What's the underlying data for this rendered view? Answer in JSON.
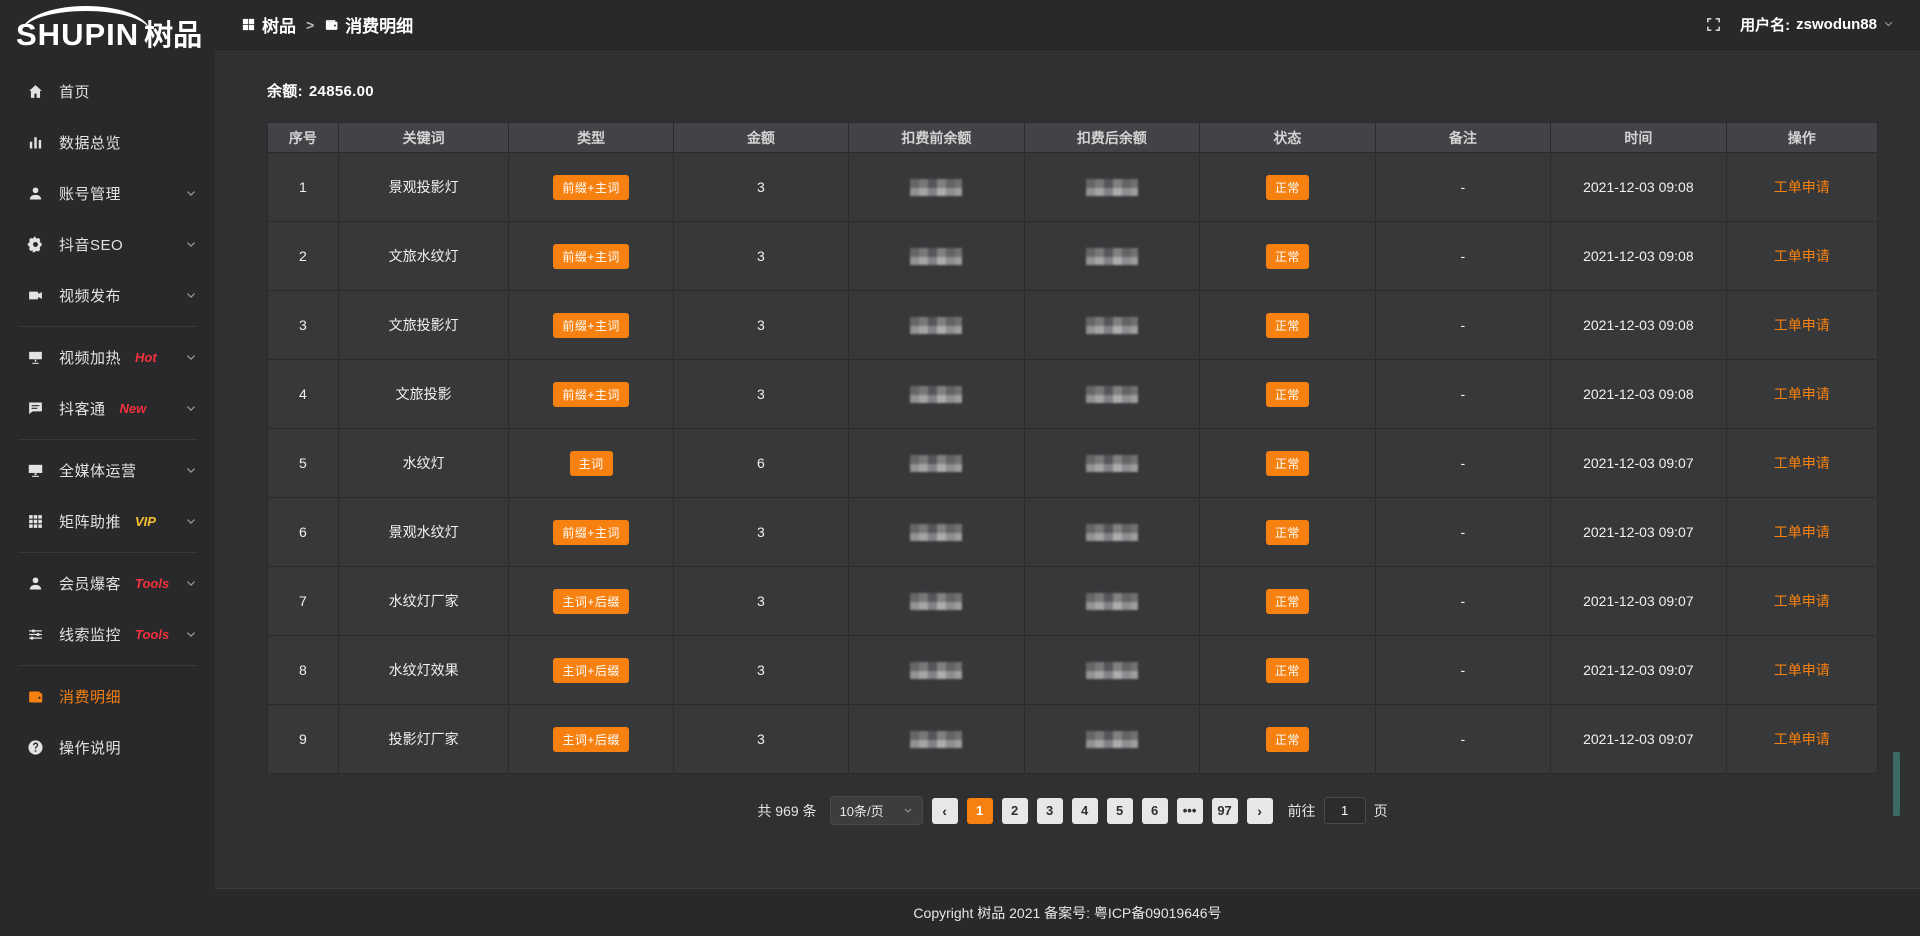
{
  "colors": {
    "accent": "#f78110",
    "hot_red": "#f5313d",
    "vip_gold": "#f7c12e",
    "sidebar_bg": "#29292b",
    "content_bg": "#2f3032"
  },
  "logo": {
    "text_en": "SHUPIN",
    "text_cn": "树品"
  },
  "header": {
    "breadcrumb": [
      {
        "label": "树品",
        "icon": "grid-small-icon"
      },
      {
        "label": "消费明细",
        "icon": "wallet-icon"
      }
    ],
    "separator": ">",
    "fullscreen_icon": "fullscreen-icon",
    "username_label": "用户名:",
    "username": "zswodun88"
  },
  "sidebar": {
    "items": [
      {
        "id": "home",
        "label": "首页",
        "icon": "home-icon"
      },
      {
        "id": "data-overview",
        "label": "数据总览",
        "icon": "chart-icon"
      },
      {
        "id": "account-manage",
        "label": "账号管理",
        "icon": "user-icon",
        "chevron": true
      },
      {
        "id": "douyin-seo",
        "label": "抖音SEO",
        "icon": "gear-icon",
        "chevron": true
      },
      {
        "id": "video-publish",
        "label": "视频发布",
        "icon": "video-icon",
        "chevron": true
      },
      {
        "divider": true
      },
      {
        "id": "video-heat",
        "label": "视频加热",
        "icon": "screen-icon",
        "badge": "Hot",
        "badge_color": "red",
        "chevron": true
      },
      {
        "id": "douketong",
        "label": "抖客通",
        "icon": "comment-icon",
        "badge": "New",
        "badge_color": "red",
        "chevron": true
      },
      {
        "divider": true
      },
      {
        "id": "media-operation",
        "label": "全媒体运营",
        "icon": "monitor-icon",
        "chevron": true
      },
      {
        "id": "matrix-boost",
        "label": "矩阵助推",
        "icon": "grid-icon",
        "badge": "VIP",
        "badge_color": "gold",
        "chevron": true
      },
      {
        "divider": true
      },
      {
        "id": "member-baoke",
        "label": "会员爆客",
        "icon": "member-icon",
        "badge": "Tools",
        "badge_color": "red",
        "chevron": true
      },
      {
        "id": "clue-monitor",
        "label": "线索监控",
        "icon": "sliders-icon",
        "badge": "Tools",
        "badge_color": "red",
        "chevron": true
      },
      {
        "divider": true
      },
      {
        "id": "consume-detail",
        "label": "消费明细",
        "icon": "wallet-icon",
        "active": true
      },
      {
        "id": "guide",
        "label": "操作说明",
        "icon": "question-icon"
      }
    ]
  },
  "main": {
    "balance_label": "余额:",
    "balance_value": "24856.00",
    "table": {
      "columns": [
        "序号",
        "关键词",
        "类型",
        "金额",
        "扣费前余额",
        "扣费后余额",
        "状态",
        "备注",
        "时间",
        "操作"
      ],
      "rows": [
        {
          "no": "1",
          "keyword": "景观投影灯",
          "type": "前缀+主词",
          "amount": "3",
          "status": "正常",
          "remark": "-",
          "time": "2021-12-03 09:08",
          "action": "工单申请"
        },
        {
          "no": "2",
          "keyword": "文旅水纹灯",
          "type": "前缀+主词",
          "amount": "3",
          "status": "正常",
          "remark": "-",
          "time": "2021-12-03 09:08",
          "action": "工单申请"
        },
        {
          "no": "3",
          "keyword": "文旅投影灯",
          "type": "前缀+主词",
          "amount": "3",
          "status": "正常",
          "remark": "-",
          "time": "2021-12-03 09:08",
          "action": "工单申请"
        },
        {
          "no": "4",
          "keyword": "文旅投影",
          "type": "前缀+主词",
          "amount": "3",
          "status": "正常",
          "remark": "-",
          "time": "2021-12-03 09:08",
          "action": "工单申请"
        },
        {
          "no": "5",
          "keyword": "水纹灯",
          "type": "主词",
          "amount": "6",
          "status": "正常",
          "remark": "-",
          "time": "2021-12-03 09:07",
          "action": "工单申请"
        },
        {
          "no": "6",
          "keyword": "景观水纹灯",
          "type": "前缀+主词",
          "amount": "3",
          "status": "正常",
          "remark": "-",
          "time": "2021-12-03 09:07",
          "action": "工单申请"
        },
        {
          "no": "7",
          "keyword": "水纹灯厂家",
          "type": "主词+后缀",
          "amount": "3",
          "status": "正常",
          "remark": "-",
          "time": "2021-12-03 09:07",
          "action": "工单申请"
        },
        {
          "no": "8",
          "keyword": "水纹灯效果",
          "type": "主词+后缀",
          "amount": "3",
          "status": "正常",
          "remark": "-",
          "time": "2021-12-03 09:07",
          "action": "工单申请"
        },
        {
          "no": "9",
          "keyword": "投影灯厂家",
          "type": "主词+后缀",
          "amount": "3",
          "status": "正常",
          "remark": "-",
          "time": "2021-12-03 09:07",
          "action": "工单申请"
        }
      ],
      "redacted_columns": [
        "扣费前余额",
        "扣费后余额"
      ]
    },
    "pagination": {
      "total_text": "共 969 条",
      "page_size": "10条/页",
      "prev": "‹",
      "next": "›",
      "pages": [
        "1",
        "2",
        "3",
        "4",
        "5",
        "6",
        "•••",
        "97"
      ],
      "active_page": "1",
      "goto_label": "前往",
      "goto_value": "1",
      "goto_suffix": "页"
    }
  },
  "footer": {
    "copyright": "Copyright 树品 2021 备案号: 粤ICP备09019646号"
  }
}
